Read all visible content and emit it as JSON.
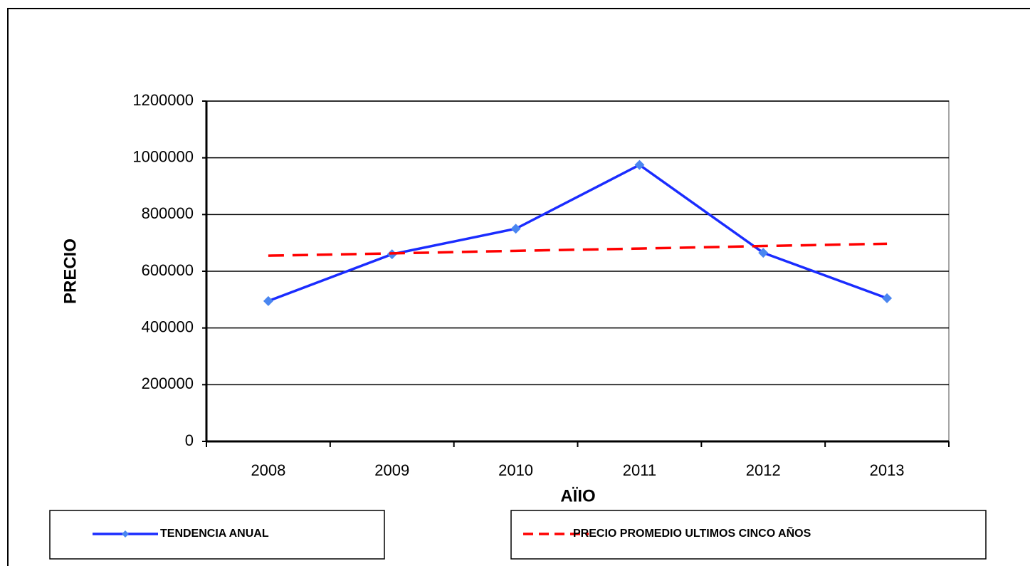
{
  "chart_data": {
    "type": "line",
    "x_label": "AÏIO",
    "y_label": "PRECIO",
    "categories": [
      "2008",
      "2009",
      "2010",
      "2011",
      "2012",
      "2013"
    ],
    "series": [
      {
        "name": "TENDENCIA ANUAL",
        "color": "#1a2cff",
        "marker_color": "#4a86f0",
        "dashed": false,
        "markers": true,
        "values": [
          495000,
          660000,
          750000,
          975000,
          665000,
          505000
        ]
      },
      {
        "name": "PRECIO PROMEDIO ULTIMOS CINCO AÑOS",
        "color": "#ff0000",
        "dashed": true,
        "markers": false,
        "values": [
          655000,
          663000,
          672000,
          680000,
          689000,
          697000
        ]
      }
    ],
    "ylim": [
      0,
      1200000
    ],
    "yticks": [
      0,
      200000,
      400000,
      600000,
      800000,
      1000000,
      1200000
    ],
    "grid": true
  }
}
